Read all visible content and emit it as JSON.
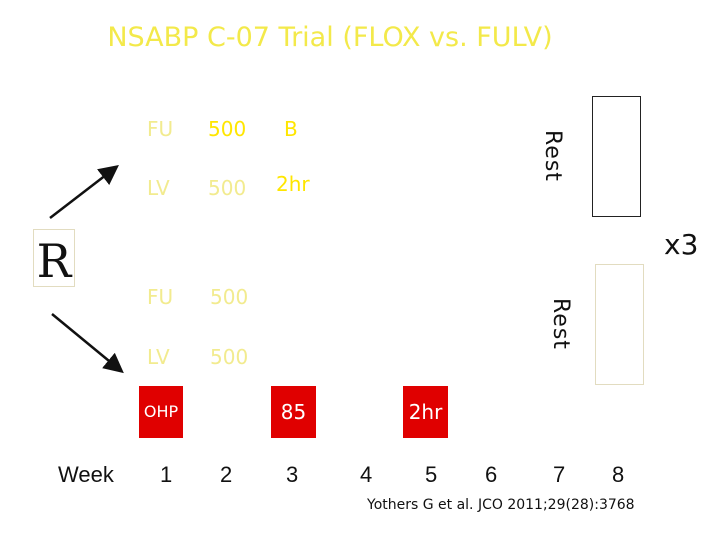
{
  "title": "NSABP C-07 Trial (FLOX vs. FULV)",
  "randomization_label": "R",
  "cycles_label": "x3",
  "arm_top": {
    "fu_label": "FU",
    "fu_dose": "500",
    "fu_extra": "B",
    "lv_label": "LV",
    "lv_dose": "500",
    "lv_extra": "2hr",
    "rest_label": "Rest"
  },
  "arm_bottom": {
    "fu_label": "FU",
    "fu_dose": "500",
    "lv_label": "LV",
    "lv_dose": "500",
    "rest_label": "Rest"
  },
  "oxaliplatin": {
    "label": "OHP",
    "dose": "85",
    "duration": "2hr"
  },
  "week_label": "Week",
  "weeks": [
    "1",
    "2",
    "3",
    "4",
    "5",
    "6",
    "7",
    "8"
  ],
  "citation": "Yothers G et al. JCO 2011;29(28):3768",
  "colors": {
    "title": "#f3e94a",
    "drug_text": "#f2eb8f",
    "ohp_box": "#e00000",
    "text": "#111111"
  }
}
